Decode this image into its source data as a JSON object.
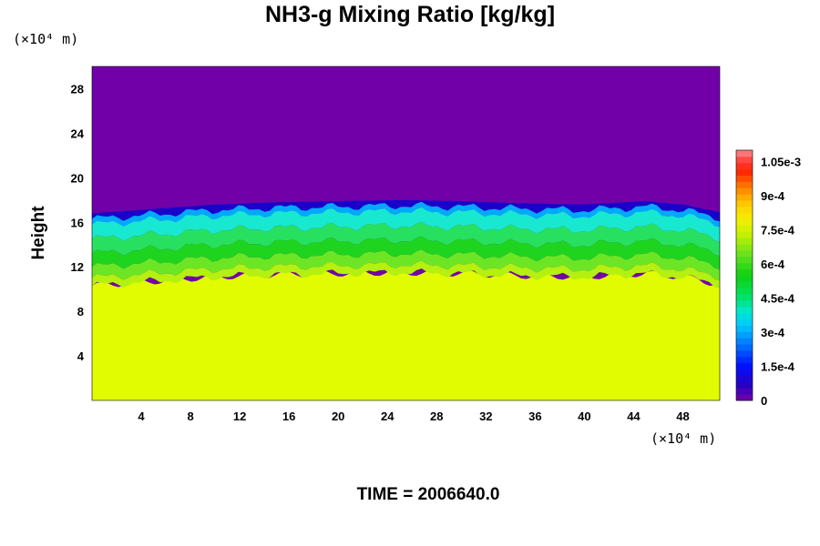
{
  "chart_data": {
    "type": "heatmap",
    "title": "NH3-g Mixing Ratio [kg/kg]",
    "ylabel": "Height",
    "x_unit_label": "(×10⁴ m)",
    "y_unit_label": "(×10⁴ m)",
    "xlim": [
      0,
      51
    ],
    "ylim": [
      0,
      30
    ],
    "x_ticks": [
      "4",
      "8",
      "12",
      "16",
      "20",
      "24",
      "28",
      "32",
      "36",
      "40",
      "44",
      "48"
    ],
    "y_ticks": [
      "4",
      "8",
      "12",
      "16",
      "20",
      "24",
      "28"
    ],
    "colorbar": {
      "min": 0,
      "max": 0.0011,
      "labels": [
        "0",
        "1.5e-4",
        "3e-4",
        "4.5e-4",
        "6e-4",
        "7.5e-4",
        "9e-4",
        "1.05e-3"
      ]
    },
    "field": {
      "top_value": 0,
      "top_color": "#7200a8",
      "lower_value": 0.00077,
      "lower_color": "#e2fc00",
      "transition_height_profile": {
        "x": [
          0,
          5,
          10,
          15,
          20,
          25,
          30,
          35,
          40,
          45,
          48,
          51
        ],
        "y": [
          16.8,
          17.2,
          17.6,
          17.8,
          17.9,
          18.0,
          17.9,
          17.7,
          17.6,
          17.9,
          17.6,
          16.9
        ]
      },
      "layers": [
        {
          "value": 6e-05,
          "color": "#1a00c8",
          "from_depth": 0.0,
          "to_depth": 0.5
        },
        {
          "value": 0.00025,
          "color": "#00a8ff",
          "from_depth": 0.5,
          "to_depth": 1.0
        },
        {
          "value": 0.00038,
          "color": "#18e8d0",
          "from_depth": 1.0,
          "to_depth": 2.3
        },
        {
          "value": 0.0005,
          "color": "#28e060",
          "from_depth": 2.3,
          "to_depth": 3.6
        },
        {
          "value": 0.00055,
          "color": "#1ed41e",
          "from_depth": 3.6,
          "to_depth": 4.8
        },
        {
          "value": 0.00065,
          "color": "#6ce624",
          "from_depth": 4.8,
          "to_depth": 5.8
        },
        {
          "value": 0.00072,
          "color": "#b4f010",
          "from_depth": 5.8,
          "to_depth": 6.5
        }
      ]
    }
  },
  "time_label": "TIME = 2006640.0"
}
